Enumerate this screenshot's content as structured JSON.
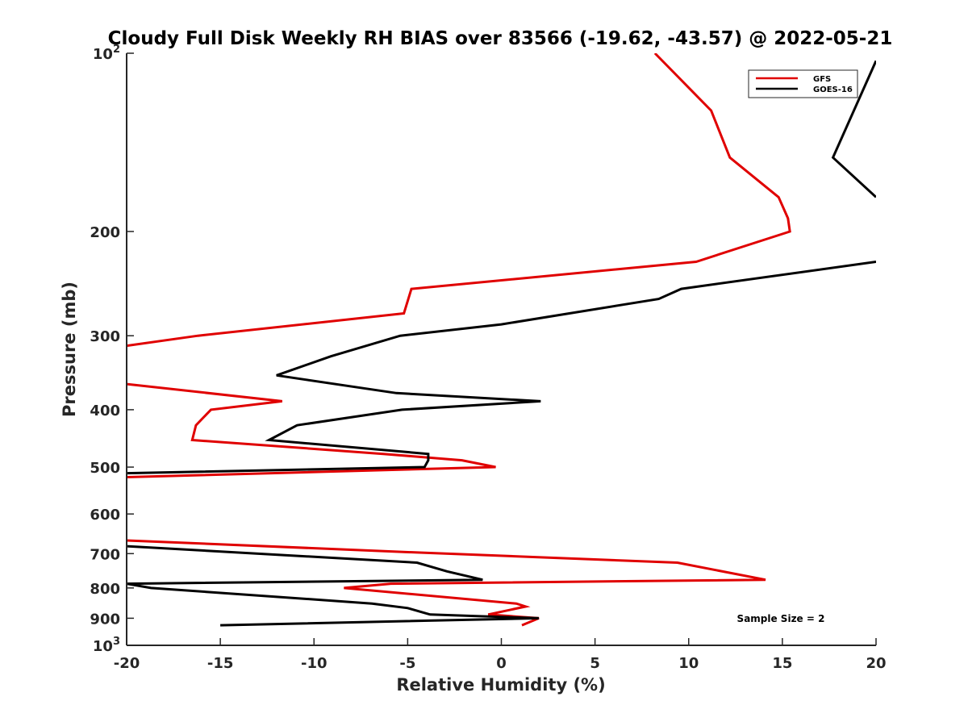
{
  "chart_data": {
    "type": "line",
    "title": "Cloudy Full Disk Weekly RH BIAS over 83566 (-19.62, -43.57) @ 2022-05-21",
    "xlabel": "Relative Humidity (%)",
    "ylabel": "Pressure (mb)",
    "xlim": [
      -20,
      20
    ],
    "ylim": [
      100,
      1000
    ],
    "y_scale": "log",
    "y_reversed": true,
    "grid": false,
    "legend_position": "top-right",
    "x_ticks": [
      "-20",
      "-15",
      "-10",
      "-5",
      "0",
      "5",
      "10",
      "15",
      "20"
    ],
    "y_ticks": [
      {
        "value": 100,
        "base": "10",
        "exp": "2"
      },
      {
        "value": 200,
        "label": "200"
      },
      {
        "value": 300,
        "label": "300"
      },
      {
        "value": 400,
        "label": "400"
      },
      {
        "value": 500,
        "label": "500"
      },
      {
        "value": 600,
        "label": "600"
      },
      {
        "value": 700,
        "label": "700"
      },
      {
        "value": 800,
        "label": "800"
      },
      {
        "value": 900,
        "label": "900"
      },
      {
        "value": 1000,
        "base": "10",
        "exp": "3"
      }
    ],
    "annotation": "Sample Size = 2",
    "series": [
      {
        "name": "GFS",
        "color": "#e00000",
        "segments": [
          [
            [
              8.2,
              100
            ],
            [
              11.2,
              125
            ],
            [
              12.2,
              150
            ],
            [
              14.8,
              175
            ],
            [
              15.3,
              190
            ],
            [
              15.4,
              200
            ],
            [
              10.4,
              225
            ],
            [
              -4.8,
              250
            ],
            [
              -5.2,
              275
            ],
            [
              -16.2,
              300
            ],
            [
              -20,
              312
            ]
          ],
          [
            [
              -20,
              362
            ],
            [
              -11.7,
              387
            ],
            [
              -15.5,
              400
            ],
            [
              -16.3,
              425
            ],
            [
              -16.5,
              450
            ],
            [
              -6.3,
              475
            ],
            [
              -2.1,
              487
            ],
            [
              -0.3,
              500
            ],
            [
              -20,
              520
            ]
          ],
          [
            [
              -20,
              665
            ],
            [
              -4.5,
              697
            ],
            [
              9.4,
              725
            ],
            [
              14.1,
              775
            ],
            [
              -5.9,
              787
            ],
            [
              -8.4,
              800
            ],
            [
              0.8,
              850
            ],
            [
              1.3,
              860
            ],
            [
              -0.7,
              887
            ],
            [
              2.0,
              900
            ],
            [
              1.1,
              925
            ]
          ]
        ]
      },
      {
        "name": "GOES-16",
        "color": "#000000",
        "segments": [
          [
            [
              20,
              103
            ],
            [
              17.7,
              150
            ],
            [
              20,
              175
            ]
          ],
          [
            [
              20,
              225
            ],
            [
              9.6,
              250
            ],
            [
              8.4,
              260
            ],
            [
              0,
              287
            ],
            [
              -5.4,
              300
            ],
            [
              -9.1,
              325
            ],
            [
              -12,
              350
            ],
            [
              -5.6,
              375
            ],
            [
              2.1,
              387
            ],
            [
              -5.3,
              400
            ],
            [
              -10.9,
              425
            ],
            [
              -12.4,
              450
            ],
            [
              -3.9,
              475
            ],
            [
              -3.9,
              487
            ],
            [
              -4.1,
              500
            ],
            [
              -20,
              512
            ]
          ],
          [
            [
              -20,
              680
            ],
            [
              -4.5,
              725
            ],
            [
              -2.9,
              750
            ],
            [
              -1.0,
              775
            ],
            [
              -20,
              787
            ],
            [
              -18.7,
              800
            ],
            [
              -6.9,
              850
            ],
            [
              -5.0,
              865
            ],
            [
              -3.8,
              887
            ],
            [
              2.0,
              900
            ],
            [
              -15,
              925
            ]
          ]
        ]
      }
    ]
  }
}
